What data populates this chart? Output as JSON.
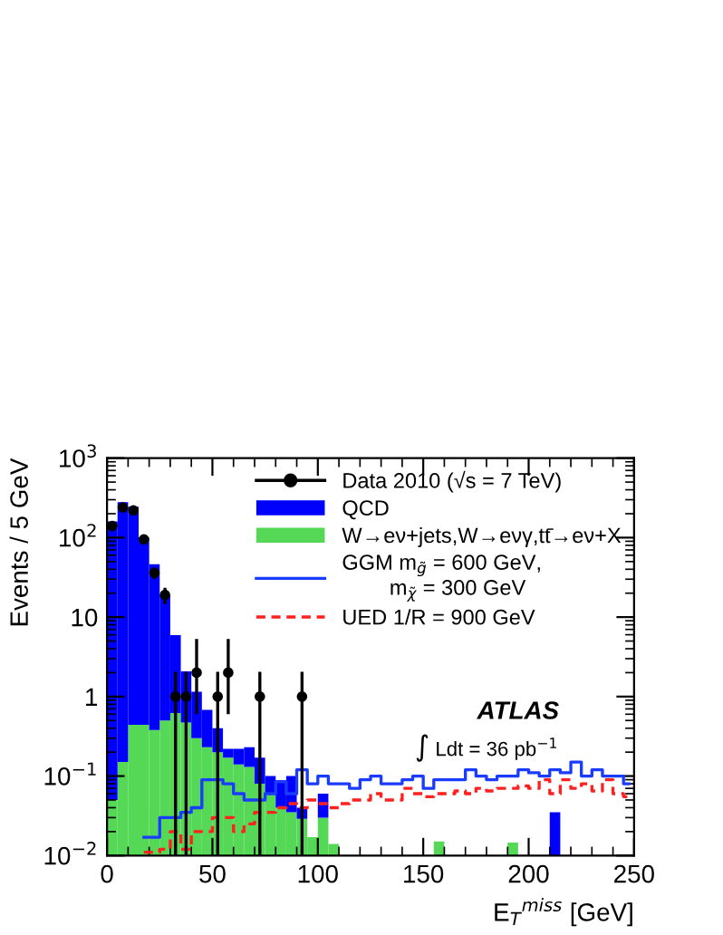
{
  "chart_data": {
    "type": "bar",
    "xlabel": "E$_{T}$$^{miss}$ [GeV]",
    "ylabel": "Events / 5 GeV",
    "xlim": [
      0,
      250
    ],
    "xticks": [
      0,
      50,
      100,
      150,
      200,
      250
    ],
    "ylim": [
      0.01,
      1000
    ],
    "yticks": [
      {
        "value": 0.01,
        "label": "10$^{−2}$"
      },
      {
        "value": 0.1,
        "label": "10$^{−1}$"
      },
      1,
      10,
      {
        "value": 100,
        "label": "10$^{2}$"
      },
      {
        "value": 1000,
        "label": "10$^{3}$"
      }
    ],
    "log": "y",
    "legend": "top right",
    "grid": false,
    "stacked": true,
    "annotations": [
      "ATLAS",
      "∫ Ldt = 36 pb$^{−1}$"
    ],
    "series": [
      {
        "name": "Data 2010 (√s = 7 TeV)",
        "type": "scatter",
        "color": "#000000",
        "marker": "circle",
        "x": [
          2.5,
          7.5,
          12.5,
          17.5,
          22.5,
          27.5,
          32.5,
          37.5,
          42.5,
          52.5,
          57.5,
          72.5,
          92.5
        ],
        "values": [
          140,
          240,
          220,
          95,
          36,
          19,
          1,
          1,
          2,
          1,
          2,
          1,
          1
        ],
        "errors": [
          12,
          15,
          15,
          10,
          6,
          4.4,
          [
            0.01,
            2.05
          ],
          [
            0.01,
            2.05
          ],
          [
            0.6,
            5.3
          ],
          [
            0.01,
            2.05
          ],
          [
            0.6,
            5.3
          ],
          [
            0.01,
            2.05
          ],
          [
            0.01,
            2.05
          ]
        ]
      },
      {
        "name": "W→eν+jets,W→eνγ,tt̄→eν+X",
        "color": "#55d855",
        "x": [
          2.5,
          7.5,
          12.5,
          17.5,
          22.5,
          27.5,
          32.5,
          37.5,
          42.5,
          47.5,
          52.5,
          57.5,
          62.5,
          67.5,
          72.5,
          77.5,
          82.5,
          87.5,
          92.5,
          97.5,
          102.5,
          107.5,
          157.5,
          192.5
        ],
        "values": [
          0.05,
          0.15,
          0.44,
          0.44,
          0.38,
          0.5,
          0.62,
          0.47,
          0.3,
          0.23,
          0.2,
          0.17,
          0.14,
          0.13,
          0.08,
          0.058,
          0.04,
          0.035,
          0.029,
          0.017,
          0.03,
          0.014,
          0.015,
          0.0145
        ]
      },
      {
        "name": "QCD",
        "color": "#0000ff",
        "x": [
          2.5,
          7.5,
          12.5,
          17.5,
          22.5,
          27.5,
          32.5,
          37.5,
          42.5,
          47.5,
          52.5,
          57.5,
          62.5,
          67.5,
          72.5,
          77.5,
          82.5,
          87.5,
          92.5,
          97.5,
          102.5,
          107.5,
          157.5,
          192.5,
          212.5
        ],
        "values": [
          160,
          280,
          245,
          100,
          46,
          18.5,
          5.3,
          1.6,
          0.85,
          0.45,
          0.2,
          0.05,
          0.08,
          0.1,
          0.09,
          0.042,
          0.043,
          0.065,
          0.011,
          null,
          0.03,
          null,
          null,
          null,
          0.035
        ]
      },
      {
        "name": "GGM m$_{g̃}$ = 600 GeV,\n        m$_{χ̃}$ = 300 GeV",
        "type": "step",
        "color": "#1a3cff",
        "line_style": "solid",
        "x": [
          17.5,
          22.5,
          27.5,
          32.5,
          37.5,
          42.5,
          47.5,
          52.5,
          57.5,
          62.5,
          67.5,
          72.5,
          77.5,
          82.5,
          87.5,
          92.5,
          97.5,
          102.5,
          107.5,
          112.5,
          117.5,
          122.5,
          127.5,
          132.5,
          137.5,
          142.5,
          147.5,
          152.5,
          157.5,
          162.5,
          167.5,
          172.5,
          177.5,
          182.5,
          187.5,
          192.5,
          197.5,
          202.5,
          207.5,
          212.5,
          217.5,
          222.5,
          227.5,
          232.5,
          237.5,
          242.5,
          247.5
        ],
        "values": [
          0.017,
          0.017,
          0.03,
          0.03,
          0.035,
          0.04,
          0.09,
          0.09,
          0.08,
          0.06,
          0.05,
          0.05,
          0.06,
          0.085,
          0.06,
          0.12,
          0.08,
          0.1,
          0.08,
          0.08,
          0.07,
          0.09,
          0.1,
          0.08,
          0.08,
          0.09,
          0.1,
          0.07,
          0.09,
          0.09,
          0.09,
          0.12,
          0.1,
          0.09,
          0.1,
          0.1,
          0.12,
          0.11,
          0.1,
          0.12,
          0.11,
          0.15,
          0.1,
          0.12,
          0.1,
          0.1,
          0.08
        ]
      },
      {
        "name": "UED 1/R = 900 GeV",
        "type": "step",
        "color": "#ff2020",
        "line_style": "dashed",
        "x": [
          17.5,
          22.5,
          27.5,
          32.5,
          37.5,
          42.5,
          47.5,
          52.5,
          57.5,
          62.5,
          67.5,
          72.5,
          77.5,
          82.5,
          87.5,
          92.5,
          97.5,
          102.5,
          107.5,
          112.5,
          117.5,
          122.5,
          127.5,
          132.5,
          137.5,
          142.5,
          147.5,
          152.5,
          157.5,
          162.5,
          167.5,
          172.5,
          177.5,
          182.5,
          187.5,
          192.5,
          197.5,
          202.5,
          207.5,
          212.5,
          217.5,
          222.5,
          227.5,
          232.5,
          237.5,
          242.5,
          247.5
        ],
        "values": [
          0.011,
          0.011,
          0.012,
          0.02,
          0.012,
          0.02,
          0.02,
          0.03,
          0.03,
          0.02,
          0.025,
          0.035,
          0.035,
          0.04,
          0.045,
          0.04,
          0.05,
          0.045,
          0.04,
          0.045,
          0.05,
          0.05,
          0.06,
          0.05,
          0.05,
          0.07,
          0.06,
          0.055,
          0.06,
          0.06,
          0.065,
          0.06,
          0.07,
          0.065,
          0.07,
          0.07,
          0.075,
          0.07,
          0.09,
          0.06,
          0.09,
          0.07,
          0.08,
          0.065,
          0.09,
          0.06,
          0.055
        ]
      }
    ]
  }
}
